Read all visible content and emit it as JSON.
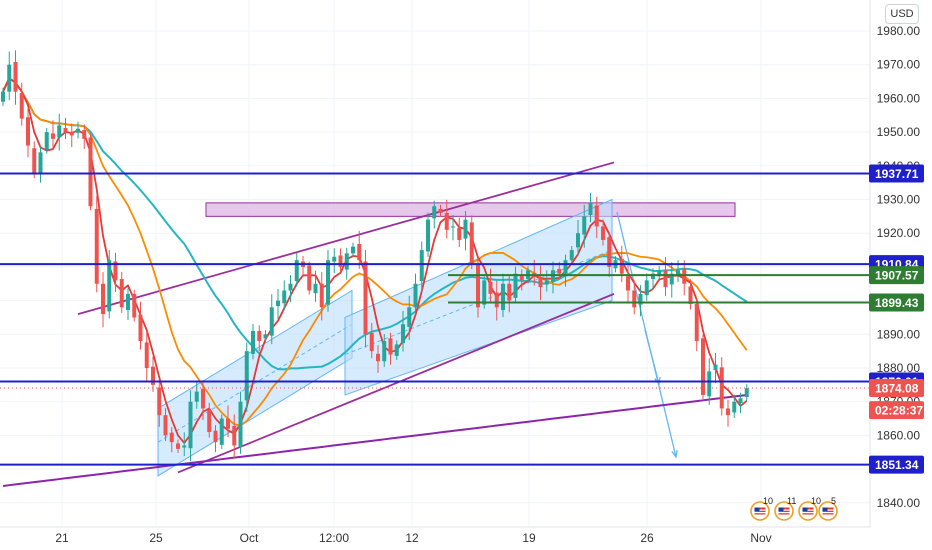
{
  "currency": "USD",
  "colors": {
    "bull": "#26a69a",
    "bear": "#ef5350",
    "hline": "#1f1fcc",
    "green_line": "#2e7d32",
    "ma_fast": "#e53935",
    "ma_mid": "#fb8c00",
    "ma_slow": "#26b6c2",
    "ma_long": "#8e24aa",
    "channel": "#9c2e9c",
    "channel_fill": "#bbdefb",
    "zone_fill": "#e1bee7",
    "arrow": "#64b5f6",
    "last_price": "#ef5350"
  },
  "y_axis": {
    "ylim": [
      1833,
      1986
    ],
    "ticks": [
      "1980.00",
      "1970.00",
      "1960.00",
      "1950.00",
      "1940.00",
      "1930.00",
      "1920.00",
      "1910.00",
      "1900.00",
      "1890.00",
      "1880.00",
      "1870.00",
      "1860.00",
      "1850.00",
      "1840.00"
    ]
  },
  "x_axis": {
    "labels": [
      "21",
      "25",
      "Oct",
      "12:00",
      "12",
      "19",
      "26",
      "Nov"
    ]
  },
  "price_tags": [
    {
      "value": 1937.71,
      "label": "1937.71",
      "style": "blue"
    },
    {
      "value": 1910.84,
      "label": "1910.84",
      "style": "blue"
    },
    {
      "value": 1907.57,
      "label": "1907.57",
      "style": "green"
    },
    {
      "value": 1899.43,
      "label": "1899.43",
      "style": "green"
    },
    {
      "value": 1876.01,
      "label": "1876.01",
      "style": "blue"
    },
    {
      "value": 1874.08,
      "label": "1874.08",
      "style": "last"
    },
    {
      "value": 1867.5,
      "label": "02:28:37",
      "style": "last"
    },
    {
      "value": 1851.34,
      "label": "1851.34",
      "style": "blue"
    }
  ],
  "event_icons": [
    "10",
    "11",
    "10",
    "5"
  ],
  "chart_data": {
    "type": "candlestick",
    "instrument_currency": "USD",
    "horizontal_levels": [
      1937.71,
      1910.84,
      1907.57,
      1899.43,
      1876.01,
      1851.34
    ],
    "last_price": 1874.08,
    "countdown": "02:28:37",
    "zone": [
      1925,
      1929
    ],
    "closes": [
      1962,
      1970,
      1962,
      1954,
      1946,
      1938,
      1944,
      1950,
      1948,
      1952,
      1950,
      1949,
      1951,
      1948,
      1928,
      1905,
      1896,
      1912,
      1906,
      1898,
      1902,
      1895,
      1888,
      1880,
      1875,
      1866,
      1860,
      1858,
      1856,
      1857,
      1870,
      1873,
      1868,
      1861,
      1858,
      1865,
      1862,
      1857,
      1870,
      1885,
      1891,
      1888,
      1890,
      1898,
      1900,
      1903,
      1905,
      1912,
      1910,
      1903,
      1905,
      1898,
      1912,
      1913,
      1910,
      1914,
      1916,
      1912,
      1890,
      1885,
      1882,
      1888,
      1884,
      1887,
      1893,
      1898,
      1905,
      1915,
      1924,
      1928,
      1926,
      1921,
      1922,
      1918,
      1924,
      1911,
      1898,
      1906,
      1902,
      1898,
      1905,
      1900,
      1908,
      1906,
      1909,
      1907,
      1904,
      1906,
      1909,
      1908,
      1912,
      1915,
      1920,
      1925,
      1929,
      1922,
      1918,
      1910,
      1912,
      1908,
      1903,
      1898,
      1902,
      1906,
      1908,
      1909,
      1904,
      1908,
      1909,
      1905,
      1899,
      1888,
      1872,
      1879,
      1881,
      1868,
      1866,
      1870,
      1871,
      1874
    ]
  }
}
